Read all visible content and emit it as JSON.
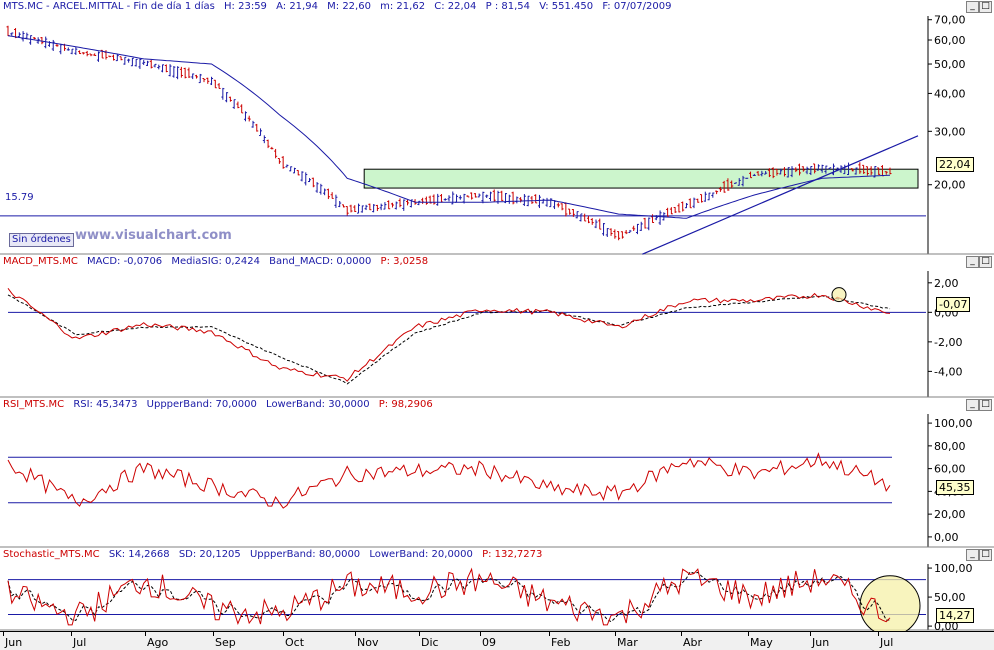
{
  "panels": {
    "price": {
      "header": {
        "symbol": "MTS.MC - ARCEL.MITTAL - Fin de día 1 días",
        "h": "H: 23:59",
        "a": "A: 21,94",
        "m": "M: 22,60",
        "mm": "m: 21,62",
        "c": "C: 22,04",
        "p": "P : 81,54",
        "v": "V: 551.450",
        "f": "F: 07/07/2009"
      },
      "last_value": "22,04",
      "hline_label": "15.79",
      "button": "Sin órdenes",
      "watermark": "www.visualchart.com",
      "y_ticks": [
        "70,00",
        "60,00",
        "50,00",
        "40,00",
        "30,00",
        "20,00"
      ]
    },
    "macd": {
      "header": {
        "name": "MACD_MTS.MC",
        "macd": "MACD: -0,0706",
        "signal": "MediaSIG: 0,2424",
        "band": "Band_MACD: 0,0000",
        "p": "P: 3,0258"
      },
      "last_value": "-0,07",
      "y_ticks": [
        "2,00",
        "0,00",
        "-2,00",
        "-4,00"
      ]
    },
    "rsi": {
      "header": {
        "name": "RSI_MTS.MC",
        "rsi": "RSI: 45,3473",
        "upper": "UppperBand: 70,0000",
        "lower": "LowerBand: 30,0000",
        "p": "P: 98,2906"
      },
      "last_value": "45,35",
      "y_ticks": [
        "100,00",
        "80,00",
        "60,00",
        "40,00",
        "20,00",
        "0,00"
      ]
    },
    "stoch": {
      "header": {
        "name": "Stochastic_MTS.MC",
        "sk": "SK: 14,2668",
        "sd": "SD: 20,1205",
        "upper": "UppperBand: 80,0000",
        "lower": "LowerBand: 20,0000",
        "p": "P: 132,7273"
      },
      "last_value": "14,27",
      "y_ticks": [
        "100,00",
        "50,00",
        "0,00"
      ]
    }
  },
  "x_labels": [
    "Jun",
    "Jul",
    "Ago",
    "Sep",
    "Oct",
    "Nov",
    "Dic",
    "09",
    "Feb",
    "Mar",
    "Abr",
    "May",
    "Jun",
    "Jul"
  ],
  "colors": {
    "bull": "#1a1aa6",
    "bear": "#cc0000",
    "ma": "#1a1aa6",
    "band": "#1a1aa6",
    "zone": "#ccf5cc",
    "circle": "#f5f0a8"
  },
  "chart_data": [
    {
      "type": "candlestick",
      "title": "MTS.MC - ARCEL.MITTAL",
      "y_scale": "log",
      "ylim": [
        12,
        72
      ],
      "x": [
        "Jun 2008",
        "Jul 2008",
        "Ago 2008",
        "Sep 2008",
        "Oct 2008",
        "Nov 2008",
        "Dic 2008",
        "Ene 2009",
        "Feb 2009",
        "Mar 2009",
        "Abr 2009",
        "May 2009",
        "Jun 2009",
        "Jul 2009"
      ],
      "series": [
        {
          "name": "Close",
          "values": [
            64.0,
            55.0,
            50.5,
            44.0,
            24.0,
            16.5,
            17.5,
            18.5,
            17.5,
            13.5,
            17.0,
            21.5,
            22.8,
            22.04
          ]
        },
        {
          "name": "Moving average",
          "values": [
            62.0,
            57.0,
            52.0,
            50.0,
            34.0,
            21.0,
            17.5,
            17.5,
            17.8,
            16.0,
            15.5,
            18.5,
            21.0,
            21.5
          ]
        }
      ],
      "horizontal_line": 15.79,
      "zone": [
        19.5,
        22.5
      ],
      "trendline": {
        "from": [
          "Mar 2009",
          11.8
        ],
        "to": [
          "Jul 2009",
          29.0
        ]
      }
    },
    {
      "type": "line",
      "title": "MACD_MTS.MC",
      "ylim": [
        -5.6,
        2.8
      ],
      "x": [
        "Jun",
        "Jul",
        "Ago",
        "Sep",
        "Oct",
        "Nov",
        "Dic",
        "Ene",
        "Feb",
        "Mar",
        "Abr",
        "May",
        "Jun",
        "Jul"
      ],
      "series": [
        {
          "name": "MACD",
          "values": [
            1.5,
            -1.8,
            -0.8,
            -1.3,
            -3.8,
            -4.5,
            -1.0,
            0.2,
            0.0,
            -1.0,
            0.8,
            0.8,
            1.2,
            -0.07
          ]
        },
        {
          "name": "MediaSIG",
          "values": [
            1.2,
            -1.5,
            -1.0,
            -1.0,
            -3.0,
            -4.8,
            -1.4,
            0.0,
            0.1,
            -0.9,
            0.3,
            0.7,
            1.1,
            0.24
          ]
        }
      ],
      "hline": 0
    },
    {
      "type": "line",
      "title": "RSI_MTS.MC",
      "ylim": [
        -8,
        108
      ],
      "x": [
        "Jun",
        "Jul",
        "Ago",
        "Sep",
        "Oct",
        "Nov",
        "Dic",
        "Ene",
        "Feb",
        "Mar",
        "Abr",
        "May",
        "Jun",
        "Jul"
      ],
      "series": [
        {
          "name": "RSI",
          "values": [
            65,
            30,
            60,
            45,
            30,
            55,
            58,
            60,
            42,
            38,
            68,
            55,
            68,
            45.35
          ]
        }
      ],
      "bands": [
        70,
        30
      ]
    },
    {
      "type": "line",
      "title": "Stochastic_MTS.MC",
      "ylim": [
        -5,
        107
      ],
      "x": [
        "Jun",
        "Jul",
        "Ago",
        "Sep",
        "Oct",
        "Nov",
        "Dic",
        "Ene",
        "Feb",
        "Mar",
        "Abr",
        "May",
        "Jun",
        "Jul"
      ],
      "series": [
        {
          "name": "SK",
          "values": [
            55,
            15,
            80,
            30,
            20,
            70,
            60,
            80,
            40,
            15,
            85,
            50,
            85,
            14.27
          ]
        },
        {
          "name": "SD",
          "values": [
            58,
            20,
            75,
            32,
            25,
            65,
            62,
            78,
            45,
            20,
            80,
            52,
            82,
            20.12
          ]
        }
      ],
      "bands": [
        80,
        20
      ]
    }
  ]
}
